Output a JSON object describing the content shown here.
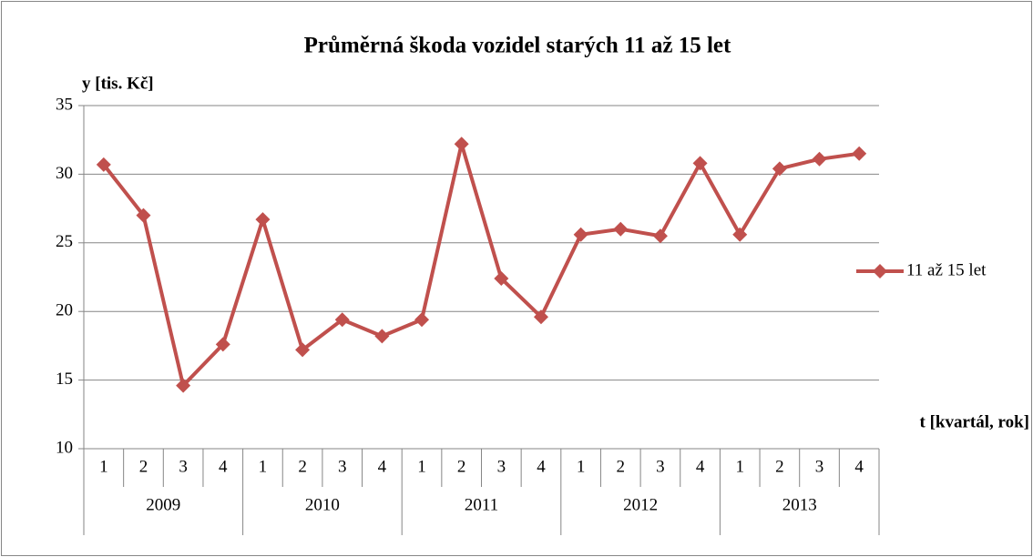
{
  "chart_data": {
    "type": "line",
    "title": "Průměrná škoda vozidel starých 11 až 15 let",
    "y_label": "y [tis. Kč]",
    "x_label": "t [kvartál, rok]",
    "categories": [
      "1",
      "2",
      "3",
      "4",
      "1",
      "2",
      "3",
      "4",
      "1",
      "2",
      "3",
      "4",
      "1",
      "2",
      "3",
      "4",
      "1",
      "2",
      "3",
      "4"
    ],
    "category_groups": [
      "2009",
      "2010",
      "2011",
      "2012",
      "2013"
    ],
    "series": [
      {
        "name": "11 až 15 let",
        "color": "#c0504d",
        "values": [
          30.7,
          27.0,
          14.6,
          17.6,
          26.7,
          17.2,
          19.4,
          18.2,
          19.4,
          32.2,
          22.4,
          19.6,
          25.6,
          26.0,
          25.5,
          30.8,
          25.6,
          30.4,
          31.1,
          31.5
        ]
      }
    ],
    "ylim": [
      10,
      35
    ],
    "yticks": [
      10,
      15,
      20,
      25,
      30,
      35
    ],
    "grid": true,
    "legend": "right"
  }
}
